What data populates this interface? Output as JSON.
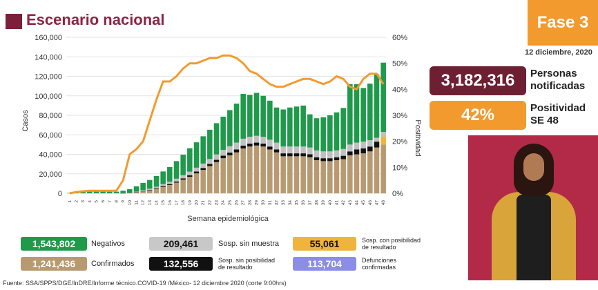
{
  "header": {
    "title": "Escenario nacional",
    "fase": "Fase 3",
    "date": "12 diciembre, 2020"
  },
  "kpis": {
    "personas_value": "3,182,316",
    "personas_label_1": "Personas",
    "personas_label_2": "notificadas",
    "positividad_value": "42%",
    "positividad_label_1": "Positividad",
    "positividad_label_2": "SE 48",
    "colors": {
      "personas": "#6e1f32",
      "positividad": "#f39a2e"
    }
  },
  "legend": {
    "negativos_value": "1,543,802",
    "negativos_label": "Negativos",
    "confirmados_value": "1,241,436",
    "confirmados_label": "Confirmados",
    "sosp_sin_muestra_value": "209,461",
    "sosp_sin_muestra_label": "Sosp. sin muestra",
    "sosp_sin_pos_value": "132,556",
    "sosp_sin_pos_label_1": "Sosp. sin posibilidad",
    "sosp_sin_pos_label_2": "de resultado",
    "sosp_con_pos_value": "55,061",
    "sosp_con_pos_label_1": "Sosp. con posibilidad",
    "sosp_con_pos_label_2": "de resultado",
    "defunciones_value": "113,704",
    "defunciones_label_1": "Defunciones",
    "defunciones_label_2": "confirmadas"
  },
  "source": "Fuente: SSA/SPPS/DGE/InDRE/Informe técnico.COVID-19 /México- 12 diciembre 2020 (corte 9:00hrs)",
  "chart_data": {
    "type": "bar",
    "stacked": true,
    "xlabel": "Semana epidemiológica",
    "ylabel": "Casos",
    "y2label": "Positividad",
    "ylim": [
      0,
      160000
    ],
    "y2lim": [
      0,
      60
    ],
    "yticks": [
      "0",
      "20,000",
      "40,000",
      "60,000",
      "80,000",
      "100,000",
      "120,000",
      "140,000",
      "160,000"
    ],
    "y2ticks": [
      "0%",
      "10%",
      "20%",
      "30%",
      "40%",
      "50%",
      "60%"
    ],
    "categories": [
      "1",
      "2",
      "3",
      "4",
      "5",
      "6",
      "7",
      "8",
      "9",
      "10",
      "11",
      "12",
      "13",
      "14",
      "15",
      "16",
      "17",
      "18",
      "19",
      "20",
      "21",
      "22",
      "23",
      "24",
      "25",
      "26",
      "27",
      "28",
      "29",
      "30",
      "31",
      "32",
      "33",
      "34",
      "35",
      "36",
      "37",
      "38",
      "39",
      "40",
      "41",
      "42",
      "43",
      "44",
      "45",
      "46",
      "47",
      "48"
    ],
    "series": [
      {
        "name": "Confirmados",
        "color": "#b89a72",
        "values": [
          0,
          0,
          0,
          0,
          0,
          0,
          0,
          0,
          100,
          400,
          1000,
          2000,
          3000,
          4500,
          6500,
          8500,
          11000,
          14000,
          17000,
          20500,
          24000,
          28000,
          32000,
          36000,
          39000,
          42000,
          46000,
          48000,
          49000,
          48000,
          45000,
          42000,
          38000,
          38000,
          38000,
          38000,
          37000,
          34000,
          33000,
          33000,
          34000,
          35000,
          39000,
          40000,
          41000,
          43000,
          47000,
          50000
        ]
      },
      {
        "name": "Sosp. sin posibilidad de resultado",
        "color": "#111111",
        "values": [
          0,
          0,
          0,
          0,
          0,
          0,
          0,
          0,
          50,
          100,
          200,
          300,
          500,
          700,
          900,
          1000,
          1200,
          1400,
          1600,
          1800,
          2000,
          2200,
          2400,
          2600,
          2800,
          3000,
          3000,
          3000,
          3000,
          3000,
          3000,
          3000,
          3000,
          3000,
          3000,
          3000,
          3000,
          3000,
          3000,
          3000,
          3000,
          3500,
          4000,
          5000,
          5000,
          5000,
          6000,
          0
        ]
      },
      {
        "name": "Sosp. con posibilidad de resultado",
        "color": "#f0b43c",
        "values": [
          0,
          0,
          0,
          0,
          0,
          0,
          0,
          0,
          0,
          0,
          0,
          0,
          0,
          0,
          0,
          0,
          0,
          0,
          0,
          0,
          0,
          0,
          0,
          0,
          0,
          0,
          0,
          0,
          0,
          0,
          0,
          0,
          0,
          0,
          0,
          0,
          0,
          0,
          0,
          0,
          0,
          0,
          0,
          0,
          0,
          0,
          0,
          8000
        ]
      },
      {
        "name": "Sosp. sin muestra",
        "color": "#c0c0c0",
        "values": [
          0,
          0,
          0,
          0,
          0,
          0,
          0,
          0,
          50,
          200,
          500,
          800,
          1200,
          1600,
          2000,
          2400,
          2800,
          3200,
          3600,
          4000,
          4500,
          5000,
          5500,
          6000,
          6500,
          7000,
          7000,
          7000,
          7000,
          7000,
          7000,
          7000,
          7000,
          7000,
          7000,
          7000,
          7000,
          7000,
          7000,
          7000,
          7000,
          7000,
          7000,
          7000,
          7000,
          6500,
          4000,
          5000
        ]
      },
      {
        "name": "Negativos",
        "color": "#1e9a4a",
        "values": [
          500,
          1000,
          1500,
          2000,
          2000,
          1800,
          1700,
          1700,
          2500,
          3500,
          5500,
          7500,
          9000,
          11000,
          13000,
          15000,
          18000,
          21000,
          24000,
          26000,
          28000,
          30000,
          32000,
          34000,
          37000,
          40000,
          46000,
          43000,
          44000,
          42000,
          40000,
          36000,
          38000,
          40000,
          41000,
          42000,
          34000,
          33000,
          35000,
          37000,
          39000,
          42000,
          62000,
          60000,
          55000,
          58000,
          65000,
          71000
        ]
      }
    ],
    "positividad": {
      "name": "Positividad",
      "color": "#f39a2e",
      "values": [
        0,
        0.5,
        0.8,
        1,
        1,
        1,
        1,
        1,
        5,
        15,
        17,
        20,
        28,
        36,
        43,
        43,
        45,
        48,
        50,
        50,
        51,
        52,
        52,
        53,
        53,
        52,
        50,
        47,
        46,
        44,
        42,
        41,
        41,
        42,
        43,
        44,
        44,
        43,
        42,
        43,
        45,
        44,
        41,
        40,
        44,
        46,
        46,
        42
      ]
    }
  }
}
